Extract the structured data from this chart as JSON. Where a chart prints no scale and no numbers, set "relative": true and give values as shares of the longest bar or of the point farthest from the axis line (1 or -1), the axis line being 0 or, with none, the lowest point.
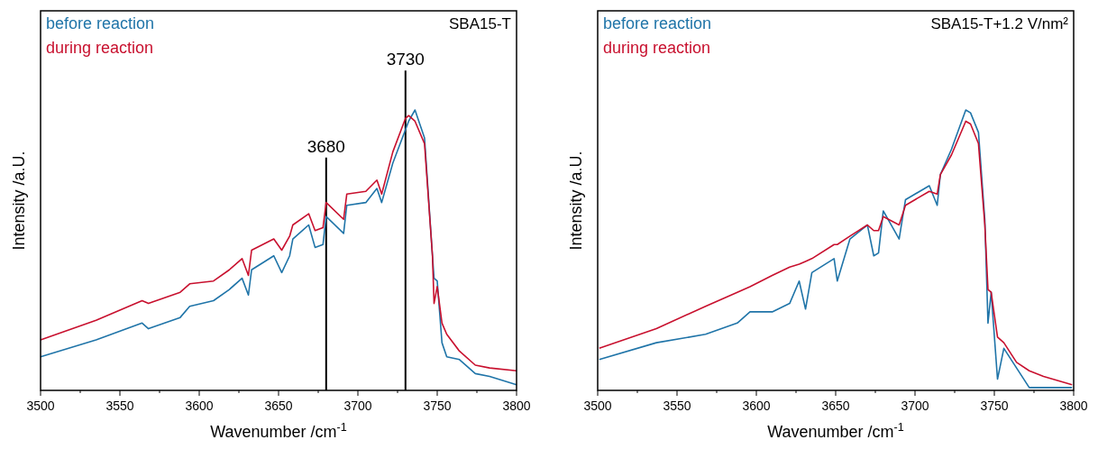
{
  "chart_data": [
    {
      "type": "line",
      "relative": true,
      "xlabel": "Wavenumber /cm$^{-1}$",
      "ylabel": "Intensity /a.U.",
      "annotations": [
        "SBA15-T"
      ],
      "legend": "top left",
      "tick_labels": "x",
      "xlim": [
        3500,
        3800
      ],
      "xticks": [
        3500,
        {
          "value": 3525,
          "label": null
        },
        3550,
        {
          "value": 3575,
          "label": null
        },
        3600,
        {
          "value": 3625,
          "label": null
        },
        3650,
        {
          "value": 3675,
          "label": null
        },
        3700,
        {
          "value": 3725,
          "label": null
        },
        3750,
        {
          "value": 3775,
          "label": null
        },
        3800
      ],
      "ref_lines": [
        {
          "axis": "x",
          "value": 3680,
          "label": "3680",
          "color": "#000000"
        },
        {
          "axis": "x",
          "value": 3730,
          "label": "3730",
          "color": "#000000"
        }
      ],
      "x": [
        3500,
        3535,
        3564,
        3568,
        3588,
        3594,
        3609,
        3619,
        3627,
        3631,
        3633,
        3647,
        3652,
        3657,
        3659,
        3669,
        3673,
        3678,
        3680,
        3691,
        3693,
        3705,
        3712,
        3715,
        3722,
        3730,
        3732,
        3736,
        3742,
        3747,
        3748,
        3750,
        3753,
        3756,
        3764,
        3774,
        3783,
        3800
      ],
      "series": [
        {
          "name": "before reaction",
          "color": "#1f74a8",
          "values": [
            0.12,
            0.18,
            0.24,
            0.22,
            0.26,
            0.3,
            0.32,
            0.36,
            0.4,
            0.34,
            0.43,
            0.48,
            0.42,
            0.48,
            0.54,
            0.59,
            0.51,
            0.52,
            0.62,
            0.56,
            0.66,
            0.67,
            0.72,
            0.67,
            0.81,
            0.93,
            0.96,
            1,
            0.9,
            0.48,
            0.4,
            0.39,
            0.17,
            0.12,
            0.11,
            0.06,
            0.05,
            0.02
          ]
        },
        {
          "name": "during reaction",
          "color": "#c8102e",
          "values": [
            0.18,
            0.25,
            0.32,
            0.31,
            0.35,
            0.38,
            0.39,
            0.43,
            0.47,
            0.41,
            0.5,
            0.54,
            0.5,
            0.55,
            0.59,
            0.63,
            0.57,
            0.58,
            0.67,
            0.61,
            0.7,
            0.71,
            0.75,
            0.7,
            0.85,
            0.97,
            0.98,
            0.96,
            0.88,
            0.48,
            0.31,
            0.37,
            0.24,
            0.2,
            0.14,
            0.09,
            0.08,
            0.07
          ]
        }
      ]
    },
    {
      "type": "line",
      "relative": true,
      "xlabel": "Wavenumber /cm$^{-1}$",
      "ylabel": "Intensity /a.U.",
      "annotations": [
        "SBA15-T+1.2 V/nm²"
      ],
      "legend": "top left",
      "tick_labels": "x",
      "xlim": [
        3500,
        3800
      ],
      "xticks": [
        3500,
        {
          "value": 3525,
          "label": null
        },
        3550,
        {
          "value": 3575,
          "label": null
        },
        3600,
        {
          "value": 3625,
          "label": null
        },
        3650,
        {
          "value": 3675,
          "label": null
        },
        3700,
        {
          "value": 3725,
          "label": null
        },
        3750,
        {
          "value": 3775,
          "label": null
        },
        3800
      ],
      "x": [
        3501,
        3537,
        3568,
        3588,
        3596,
        3610,
        3621,
        3627,
        3631,
        3635,
        3649,
        3651,
        3659,
        3670,
        3674,
        3677,
        3680,
        3690,
        3694,
        3709,
        3714,
        3716,
        3723,
        3732,
        3735,
        3740,
        3744,
        3746,
        3748,
        3752,
        3756,
        3764,
        3772,
        3781,
        3799
      ],
      "series": [
        {
          "name": "before reaction",
          "color": "#1f74a8",
          "values": [
            0.11,
            0.17,
            0.2,
            0.24,
            0.28,
            0.28,
            0.31,
            0.39,
            0.29,
            0.42,
            0.47,
            0.39,
            0.54,
            0.59,
            0.48,
            0.49,
            0.64,
            0.54,
            0.68,
            0.73,
            0.66,
            0.77,
            0.86,
            1,
            0.99,
            0.92,
            0.61,
            0.24,
            0.35,
            0.04,
            0.15,
            0.08,
            0.01,
            0.01,
            0.01
          ]
        },
        {
          "name": "during reaction",
          "color": "#c8102e",
          "values": [
            0.15,
            0.22,
            0.3,
            0.35,
            0.37,
            0.41,
            0.44,
            0.45,
            0.46,
            0.47,
            0.52,
            0.52,
            0.55,
            0.59,
            0.57,
            0.57,
            0.62,
            0.59,
            0.66,
            0.71,
            0.7,
            0.77,
            0.84,
            0.96,
            0.95,
            0.88,
            0.59,
            0.36,
            0.35,
            0.19,
            0.17,
            0.1,
            0.07,
            0.05,
            0.02
          ]
        }
      ]
    }
  ]
}
